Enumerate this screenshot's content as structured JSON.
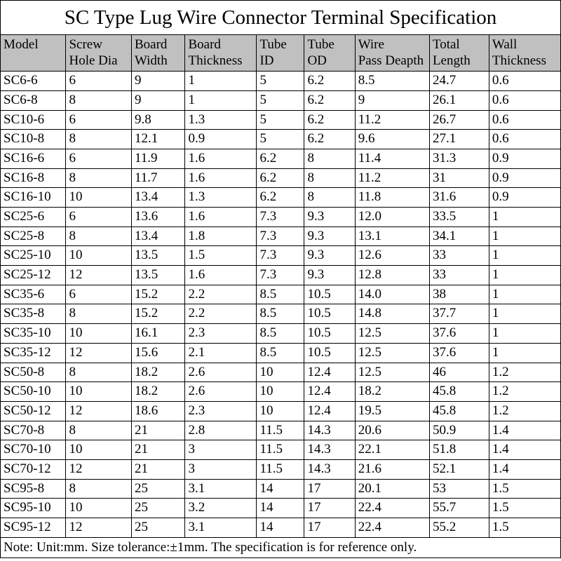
{
  "title": "SC Type Lug Wire Connector Terminal Specification",
  "columns": [
    "Model",
    "Screw Hole Dia",
    "Board Width",
    "Board Thickness",
    "Tube ID",
    "Tube OD",
    "Wire Pass Deapth",
    "Total Length",
    "Wall Thickness"
  ],
  "rows": [
    [
      "SC6-6",
      "6",
      "9",
      "1",
      "5",
      "6.2",
      "8.5",
      "24.7",
      "0.6"
    ],
    [
      "SC6-8",
      "8",
      "9",
      "1",
      "5",
      "6.2",
      "9",
      "26.1",
      "0.6"
    ],
    [
      "SC10-6",
      "6",
      "9.8",
      "1.3",
      "5",
      "6.2",
      "11.2",
      "26.7",
      "0.6"
    ],
    [
      "SC10-8",
      "8",
      "12.1",
      "0.9",
      "5",
      "6.2",
      "9.6",
      "27.1",
      "0.6"
    ],
    [
      "SC16-6",
      "6",
      "11.9",
      "1.6",
      "6.2",
      "8",
      "11.4",
      "31.3",
      "0.9"
    ],
    [
      "SC16-8",
      "8",
      "11.7",
      "1.6",
      "6.2",
      "8",
      "11.2",
      "31",
      "0.9"
    ],
    [
      "SC16-10",
      "10",
      "13.4",
      "1.3",
      "6.2",
      "8",
      "11.8",
      "31.6",
      "0.9"
    ],
    [
      "SC25-6",
      "6",
      "13.6",
      "1.6",
      "7.3",
      "9.3",
      "12.0",
      "33.5",
      "1"
    ],
    [
      "SC25-8",
      "8",
      "13.4",
      "1.8",
      "7.3",
      "9.3",
      "13.1",
      "34.1",
      "1"
    ],
    [
      "SC25-10",
      "10",
      "13.5",
      "1.5",
      "7.3",
      "9.3",
      "12.6",
      "33",
      "1"
    ],
    [
      "SC25-12",
      "12",
      "13.5",
      "1.6",
      "7.3",
      "9.3",
      "12.8",
      "33",
      "1"
    ],
    [
      "SC35-6",
      "6",
      "15.2",
      "2.2",
      "8.5",
      "10.5",
      "14.0",
      "38",
      "1"
    ],
    [
      "SC35-8",
      "8",
      "15.2",
      "2.2",
      "8.5",
      "10.5",
      "14.8",
      "37.7",
      "1"
    ],
    [
      "SC35-10",
      "10",
      "16.1",
      "2.3",
      "8.5",
      "10.5",
      "12.5",
      "37.6",
      "1"
    ],
    [
      "SC35-12",
      "12",
      "15.6",
      "2.1",
      "8.5",
      "10.5",
      "12.5",
      "37.6",
      "1"
    ],
    [
      "SC50-8",
      "8",
      "18.2",
      "2.6",
      "10",
      "12.4",
      "12.5",
      "46",
      "1.2"
    ],
    [
      "SC50-10",
      "10",
      "18.2",
      "2.6",
      "10",
      "12.4",
      "18.2",
      "45.8",
      "1.2"
    ],
    [
      "SC50-12",
      "12",
      "18.6",
      "2.3",
      "10",
      "12.4",
      "19.5",
      "45.8",
      "1.2"
    ],
    [
      "SC70-8",
      "8",
      "21",
      "2.8",
      "11.5",
      "14.3",
      "20.6",
      "50.9",
      "1.4"
    ],
    [
      "SC70-10",
      "10",
      "21",
      "3",
      "11.5",
      "14.3",
      "22.1",
      "51.8",
      "1.4"
    ],
    [
      "SC70-12",
      "12",
      "21",
      "3",
      "11.5",
      "14.3",
      "21.6",
      "52.1",
      "1.4"
    ],
    [
      "SC95-8",
      "8",
      "25",
      "3.1",
      "14",
      "17",
      "20.1",
      "53",
      "1.5"
    ],
    [
      "SC95-10",
      "10",
      "25",
      "3.2",
      "14",
      "17",
      "22.4",
      "55.7",
      "1.5"
    ],
    [
      "SC95-12",
      "12",
      "25",
      "3.1",
      "14",
      "17",
      "22.4",
      "55.2",
      "1.5"
    ]
  ],
  "note": "Note: Unit:mm. Size tolerance:±1mm. The specification is for reference only.",
  "style": {
    "header_bg": "#c0c0c0",
    "border_color": "#000000",
    "title_fontsize": 29,
    "header_fontsize": 19,
    "cell_fontsize": 19,
    "font_family": "Times New Roman",
    "col_widths_pct": [
      11,
      11,
      9,
      12,
      8,
      8.5,
      12.5,
      10,
      12
    ]
  }
}
